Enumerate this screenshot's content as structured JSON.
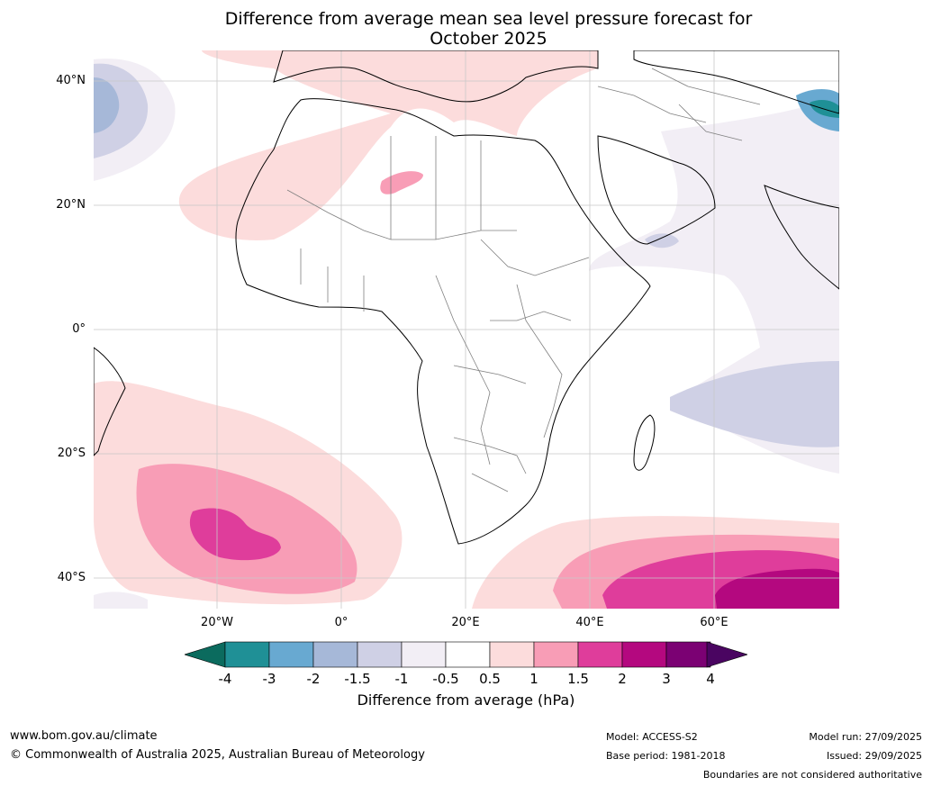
{
  "title_line1": "Difference from average mean sea level pressure forecast for",
  "title_line2": "October 2025",
  "map": {
    "lat_labels": [
      "40°N",
      "20°N",
      "0°",
      "20°S",
      "40°S"
    ],
    "lon_labels": [
      "20°W",
      "0°",
      "20°E",
      "40°E",
      "60°E"
    ],
    "extent": {
      "lon_min": -40,
      "lon_max": 80,
      "lat_min": -45,
      "lat_max": 45
    }
  },
  "colorbar": {
    "ticks": [
      "-4",
      "-3",
      "-2",
      "-1.5",
      "-1",
      "-0.5",
      "0.5",
      "1",
      "1.5",
      "2",
      "3",
      "4"
    ],
    "colors": [
      "#0b6b5e",
      "#1f9096",
      "#68a9d1",
      "#a6b8d8",
      "#cfd0e5",
      "#f2eef5",
      "#ffffff",
      "#fcdcdc",
      "#f89db6",
      "#df3d9b",
      "#b4087f",
      "#7b0173",
      "#4a0561"
    ],
    "label": "Difference from average (hPa)"
  },
  "footer": {
    "website": "www.bom.gov.au/climate",
    "copyright": "© Commonwealth of Australia 2025, Australian Bureau of Meteorology",
    "model": "Model: ACCESS-S2",
    "base_period": "Base period: 1981-2018",
    "model_run": "Model run: 27/09/2025",
    "issued": "Issued: 29/09/2025",
    "disclaimer": "Boundaries are not considered authoritative"
  }
}
